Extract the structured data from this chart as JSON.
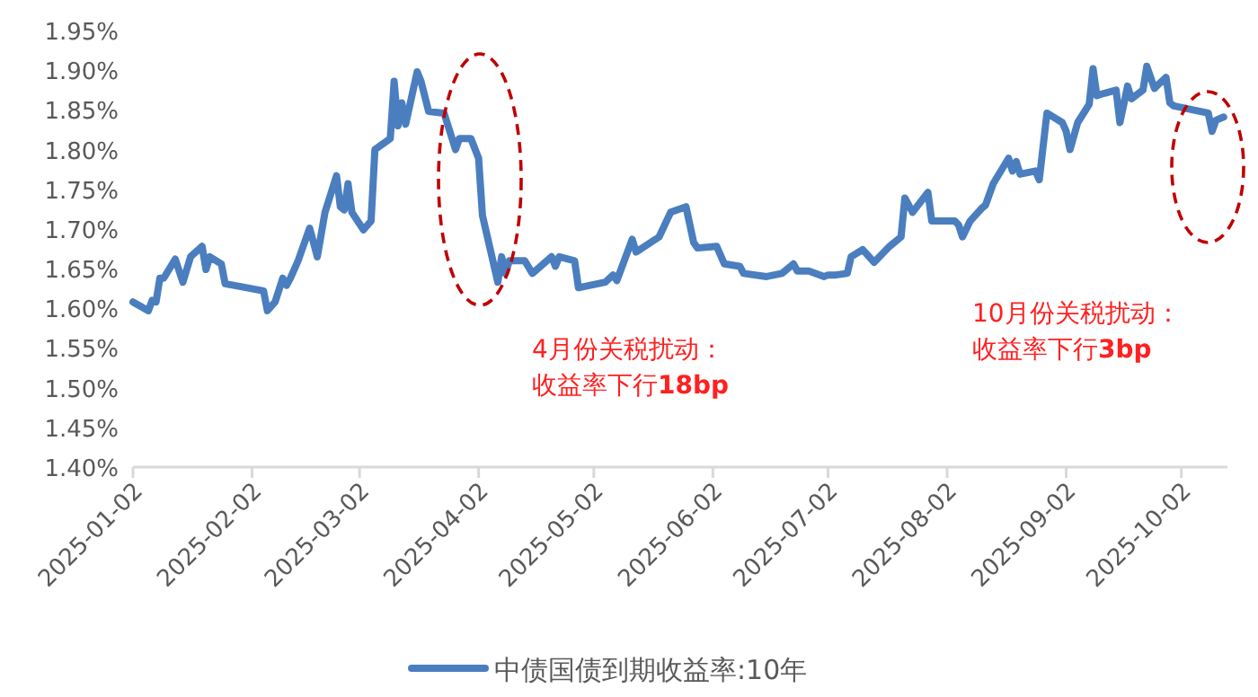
{
  "chart_data": {
    "type": "line",
    "xlim": [
      "2025-01-02",
      "2025-10-14"
    ],
    "xticks": [
      "2025-01-02",
      "2025-02-02",
      "2025-03-02",
      "2025-04-02",
      "2025-05-02",
      "2025-06-02",
      "2025-07-02",
      "2025-08-02",
      "2025-09-02",
      "2025-10-02"
    ],
    "ylim": [
      1.4,
      1.95
    ],
    "yticks": [
      {
        "value": 1.4,
        "label": "1.40%"
      },
      {
        "value": 1.45,
        "label": "1.45%"
      },
      {
        "value": 1.5,
        "label": "1.50%"
      },
      {
        "value": 1.55,
        "label": "1.55%"
      },
      {
        "value": 1.6,
        "label": "1.60%"
      },
      {
        "value": 1.65,
        "label": "1.65%"
      },
      {
        "value": 1.7,
        "label": "1.70%"
      },
      {
        "value": 1.75,
        "label": "1.75%"
      },
      {
        "value": 1.8,
        "label": "1.80%"
      },
      {
        "value": 1.85,
        "label": "1.85%"
      },
      {
        "value": 1.9,
        "label": "1.90%"
      },
      {
        "value": 1.95,
        "label": "1.95%"
      }
    ],
    "grid": false,
    "legend": "bottom",
    "marker": "none",
    "line_style": "solid",
    "series": [
      {
        "name": "中债国债到期收益率:10年",
        "color": "#4a7ebf",
        "x": [
          "2025-01-02",
          "2025-01-06",
          "2025-01-07",
          "2025-01-08",
          "2025-01-09",
          "2025-01-10",
          "2025-01-13",
          "2025-01-15",
          "2025-01-17",
          "2025-01-20",
          "2025-01-21",
          "2025-01-22",
          "2025-01-25",
          "2025-01-26",
          "2025-02-05",
          "2025-02-06",
          "2025-02-08",
          "2025-02-10",
          "2025-02-11",
          "2025-02-12",
          "2025-02-14",
          "2025-02-17",
          "2025-02-19",
          "2025-02-21",
          "2025-02-24",
          "2025-02-25",
          "2025-02-26",
          "2025-02-27",
          "2025-02-28",
          "2025-03-03",
          "2025-03-05",
          "2025-03-06",
          "2025-03-10",
          "2025-03-11",
          "2025-03-12",
          "2025-03-13",
          "2025-03-14",
          "2025-03-17",
          "2025-03-18",
          "2025-03-20",
          "2025-03-24",
          "2025-03-27",
          "2025-03-28",
          "2025-03-31",
          "2025-04-02",
          "2025-04-03",
          "2025-04-07",
          "2025-04-08",
          "2025-04-09",
          "2025-04-10",
          "2025-04-14",
          "2025-04-16",
          "2025-04-21",
          "2025-04-22",
          "2025-04-23",
          "2025-04-27",
          "2025-04-28",
          "2025-05-05",
          "2025-05-07",
          "2025-05-08",
          "2025-05-12",
          "2025-05-13",
          "2025-05-19",
          "2025-05-22",
          "2025-05-26",
          "2025-05-28",
          "2025-05-29",
          "2025-06-03",
          "2025-06-05",
          "2025-06-09",
          "2025-06-10",
          "2025-06-16",
          "2025-06-18",
          "2025-06-20",
          "2025-06-23",
          "2025-06-24",
          "2025-06-27",
          "2025-07-01",
          "2025-07-02",
          "2025-07-04",
          "2025-07-07",
          "2025-07-08",
          "2025-07-11",
          "2025-07-14",
          "2025-07-18",
          "2025-07-21",
          "2025-07-22",
          "2025-07-24",
          "2025-07-28",
          "2025-07-29",
          "2025-08-04",
          "2025-08-05",
          "2025-08-06",
          "2025-08-08",
          "2025-08-11",
          "2025-08-12",
          "2025-08-14",
          "2025-08-18",
          "2025-08-19",
          "2025-08-20",
          "2025-08-21",
          "2025-08-25",
          "2025-08-26",
          "2025-08-28",
          "2025-09-01",
          "2025-09-02",
          "2025-09-03",
          "2025-09-05",
          "2025-09-08",
          "2025-09-09",
          "2025-09-10",
          "2025-09-12",
          "2025-09-15",
          "2025-09-16",
          "2025-09-18",
          "2025-09-19",
          "2025-09-22",
          "2025-09-23",
          "2025-09-25",
          "2025-09-26",
          "2025-09-28",
          "2025-09-29",
          "2025-09-30",
          "2025-10-09",
          "2025-10-10",
          "2025-10-11",
          "2025-10-13"
        ],
        "values": [
          1.608,
          1.597,
          1.61,
          1.608,
          1.638,
          1.638,
          1.662,
          1.633,
          1.665,
          1.678,
          1.649,
          1.665,
          1.656,
          1.631,
          1.622,
          1.597,
          1.608,
          1.638,
          1.629,
          1.638,
          1.66,
          1.701,
          1.665,
          1.721,
          1.767,
          1.728,
          1.724,
          1.757,
          1.721,
          1.699,
          1.71,
          1.8,
          1.814,
          1.886,
          1.83,
          1.859,
          1.832,
          1.898,
          1.886,
          1.848,
          1.846,
          1.8,
          1.814,
          1.814,
          1.789,
          1.717,
          1.633,
          1.665,
          1.644,
          1.66,
          1.66,
          1.644,
          1.665,
          1.653,
          1.665,
          1.66,
          1.626,
          1.633,
          1.642,
          1.635,
          1.687,
          1.671,
          1.69,
          1.721,
          1.728,
          1.683,
          1.676,
          1.678,
          1.656,
          1.653,
          1.644,
          1.64,
          1.642,
          1.644,
          1.656,
          1.647,
          1.647,
          1.64,
          1.642,
          1.642,
          1.644,
          1.665,
          1.674,
          1.658,
          1.678,
          1.69,
          1.739,
          1.721,
          1.746,
          1.71,
          1.71,
          1.705,
          1.69,
          1.71,
          1.726,
          1.73,
          1.757,
          1.789,
          1.773,
          1.785,
          1.769,
          1.773,
          1.762,
          1.846,
          1.834,
          1.823,
          1.8,
          1.834,
          1.857,
          1.902,
          1.868,
          1.871,
          1.875,
          1.834,
          1.88,
          1.864,
          1.875,
          1.905,
          1.877,
          1.882,
          1.891,
          1.859,
          1.855,
          1.846,
          1.823,
          1.837,
          1.841
        ]
      }
    ],
    "annotations": [
      "4月份关税扰动：收益率下行**18bp**",
      "10月份关税扰动：收益率下行**3bp**"
    ]
  }
}
